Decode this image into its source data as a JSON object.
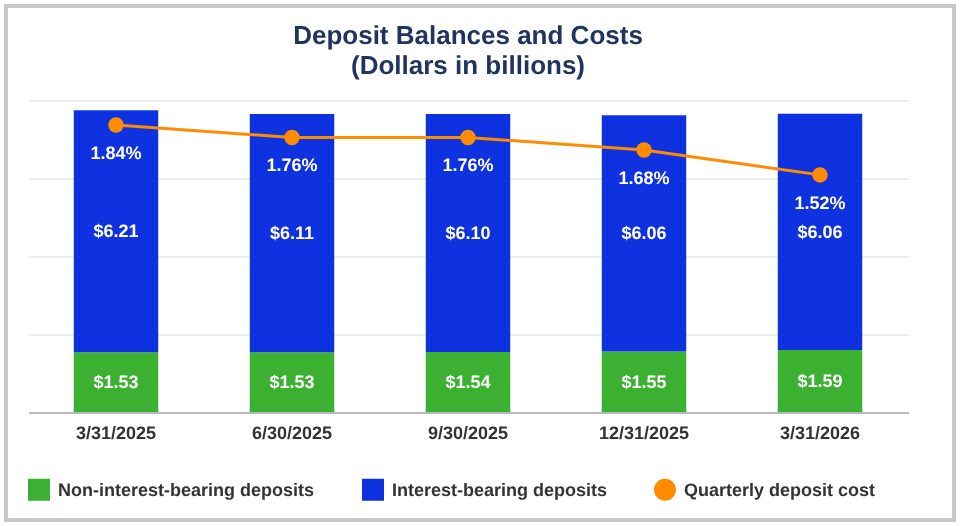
{
  "chart_data": {
    "type": "bar",
    "title": "Deposit Balances and Costs",
    "subtitle": "(Dollars in billions)",
    "categories": [
      "3/31/2025",
      "6/30/2025",
      "9/30/2025",
      "12/31/2025",
      "3/31/2026"
    ],
    "stacked": true,
    "grid": "y",
    "legend": "bottom",
    "tick_labels": "x",
    "series": [
      {
        "name": "Non-interest-bearing deposits",
        "color": "#3cb030",
        "values": [
          1.53,
          1.53,
          1.54,
          1.55,
          1.59
        ],
        "value_labels": [
          "$1.53",
          "$1.53",
          "$1.54",
          "$1.55",
          "$1.59"
        ]
      },
      {
        "name": "Interest-bearing deposits",
        "color": "#0f32e0",
        "values": [
          6.21,
          6.11,
          6.1,
          6.06,
          6.06
        ],
        "value_labels": [
          "$6.21",
          "$6.11",
          "$6.10",
          "$6.06",
          "$6.06"
        ]
      },
      {
        "name": "Quarterly deposit cost",
        "type": "line",
        "axis": "y2",
        "marker": "circle",
        "color": "#ff8c00",
        "values": [
          1.84,
          1.76,
          1.76,
          1.68,
          1.52
        ],
        "value_labels": [
          "1.84%",
          "1.76%",
          "1.76%",
          "1.68%",
          "1.52%"
        ]
      }
    ]
  }
}
